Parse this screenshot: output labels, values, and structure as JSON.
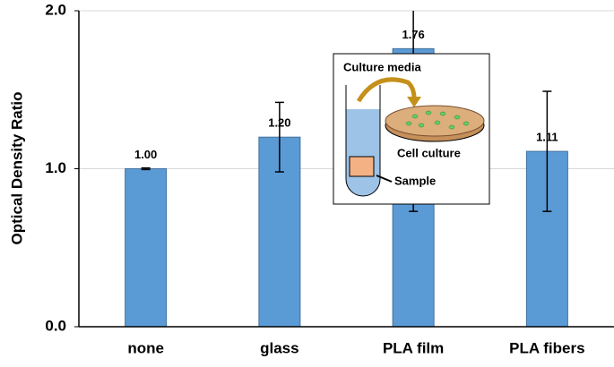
{
  "chart_data": {
    "type": "bar",
    "y_label": "Optical Density Ratio",
    "categories": [
      "none",
      "glass",
      "PLA film",
      "PLA fibers"
    ],
    "values": [
      1.0,
      1.2,
      1.76,
      1.11
    ],
    "value_labels": [
      "1.00",
      "1.20",
      "1.76",
      "1.11"
    ],
    "errors": [
      0.005,
      0.22,
      1.03,
      0.38
    ],
    "color": "#5b9bd5",
    "ylim": [
      0,
      2
    ],
    "yticks": [
      {
        "value": 0,
        "label": "0.0"
      },
      {
        "value": 1,
        "label": "1.0"
      },
      {
        "value": 2,
        "label": "2.0"
      }
    ],
    "grid": true,
    "annotations": [
      "Culture media",
      "Cell culture",
      "Sample"
    ]
  }
}
